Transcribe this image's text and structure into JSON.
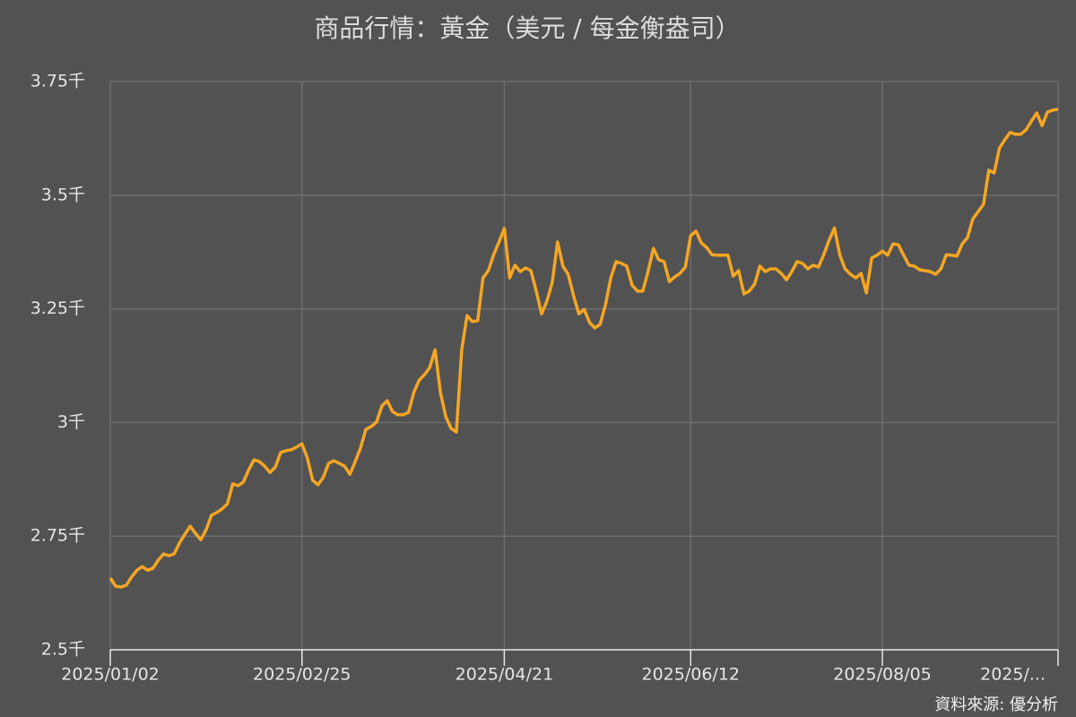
{
  "chart_data": {
    "type": "line",
    "title": "商品行情：黃金（美元 / 每金衡盎司）",
    "source": "資料來源: 優分析",
    "color": "#f5a623",
    "grid": true,
    "ylim": [
      2500,
      3750
    ],
    "yticks": [
      {
        "value": 2500,
        "label": "2.5千"
      },
      {
        "value": 2750,
        "label": "2.75千"
      },
      {
        "value": 3000,
        "label": "3千"
      },
      {
        "value": 3250,
        "label": "3.25千"
      },
      {
        "value": 3500,
        "label": "3.5千"
      },
      {
        "value": 3750,
        "label": "3.75千"
      }
    ],
    "categories": [
      "2025/01/02",
      null,
      null,
      null,
      null,
      null,
      null,
      null,
      null,
      null,
      null,
      null,
      null,
      null,
      null,
      null,
      null,
      null,
      null,
      null,
      null,
      null,
      null,
      null,
      null,
      null,
      null,
      null,
      null,
      null,
      null,
      null,
      null,
      null,
      null,
      null,
      "2025/02/25",
      null,
      null,
      null,
      null,
      null,
      null,
      null,
      null,
      null,
      null,
      null,
      null,
      null,
      null,
      null,
      null,
      null,
      null,
      null,
      null,
      null,
      null,
      null,
      null,
      null,
      null,
      null,
      null,
      null,
      null,
      null,
      null,
      null,
      null,
      null,
      null,
      null,
      "2025/04/21",
      null,
      null,
      null,
      null,
      null,
      null,
      null,
      null,
      null,
      null,
      null,
      null,
      null,
      null,
      null,
      null,
      null,
      null,
      null,
      null,
      null,
      null,
      null,
      null,
      null,
      null,
      null,
      null,
      null,
      null,
      null,
      null,
      null,
      null,
      "2025/06/12",
      null,
      null,
      null,
      null,
      null,
      null,
      null,
      null,
      null,
      null,
      null,
      null,
      null,
      null,
      null,
      null,
      null,
      null,
      null,
      null,
      null,
      null,
      null,
      null,
      null,
      null,
      null,
      null,
      null,
      null,
      null,
      null,
      null,
      null,
      null,
      "2025/08/05",
      null,
      null,
      null,
      null,
      null,
      null,
      null,
      null,
      null,
      null,
      null,
      null,
      null,
      null,
      null,
      null,
      null,
      null,
      null,
      null,
      null,
      null,
      null,
      null,
      null,
      null,
      null,
      null,
      null,
      null,
      null,
      null,
      "2025/..."
    ],
    "values": [
      2658,
      2640,
      2638,
      2642,
      2660,
      2675,
      2683,
      2675,
      2679,
      2697,
      2711,
      2707,
      2711,
      2735,
      2754,
      2772,
      2756,
      2742,
      2764,
      2796,
      2802,
      2810,
      2821,
      2865,
      2861,
      2869,
      2896,
      2918,
      2914,
      2904,
      2890,
      2902,
      2934,
      2938,
      2940,
      2946,
      2953,
      2922,
      2873,
      2863,
      2879,
      2910,
      2916,
      2910,
      2904,
      2886,
      2914,
      2944,
      2985,
      2991,
      3001,
      3036,
      3048,
      3024,
      3017,
      3017,
      3022,
      3066,
      3093,
      3105,
      3121,
      3160,
      3066,
      3013,
      2987,
      2979,
      3160,
      3235,
      3222,
      3224,
      3318,
      3334,
      3369,
      3397,
      3427,
      3318,
      3346,
      3332,
      3340,
      3334,
      3289,
      3239,
      3267,
      3308,
      3397,
      3344,
      3326,
      3279,
      3239,
      3249,
      3220,
      3208,
      3216,
      3259,
      3318,
      3354,
      3350,
      3344,
      3302,
      3289,
      3289,
      3332,
      3383,
      3358,
      3354,
      3310,
      3320,
      3328,
      3342,
      3411,
      3421,
      3395,
      3385,
      3369,
      3368,
      3368,
      3368,
      3322,
      3334,
      3283,
      3289,
      3304,
      3344,
      3332,
      3338,
      3338,
      3328,
      3314,
      3332,
      3354,
      3350,
      3338,
      3346,
      3342,
      3369,
      3401,
      3428,
      3369,
      3338,
      3326,
      3318,
      3328,
      3285,
      3362,
      3368,
      3377,
      3368,
      3393,
      3391,
      3368,
      3346,
      3344,
      3336,
      3334,
      3332,
      3326,
      3338,
      3369,
      3368,
      3366,
      3393,
      3407,
      3448,
      3464,
      3480,
      3555,
      3549,
      3604,
      3622,
      3638,
      3634,
      3634,
      3644,
      3663,
      3681,
      3653,
      3683,
      3687,
      3689
    ]
  }
}
